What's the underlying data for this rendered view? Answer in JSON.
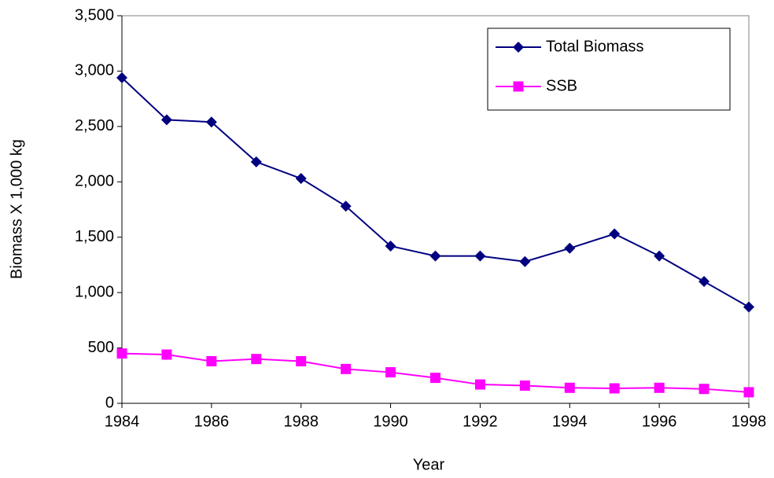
{
  "chart_data": {
    "type": "line",
    "x_label": "Year",
    "y_label": "Biomass X 1,000 kg",
    "x": [
      1984,
      1985,
      1986,
      1987,
      1988,
      1989,
      1990,
      1991,
      1992,
      1993,
      1994,
      1995,
      1996,
      1997,
      1998
    ],
    "series": [
      {
        "name": "Total Biomass",
        "color": "#000080",
        "marker": "diamond",
        "values": [
          2940,
          2560,
          2540,
          2180,
          2030,
          1780,
          1420,
          1330,
          1330,
          1280,
          1400,
          1530,
          1330,
          1100,
          870
        ]
      },
      {
        "name": "SSB",
        "color": "#ff00ff",
        "marker": "square",
        "values": [
          450,
          440,
          380,
          400,
          380,
          310,
          280,
          230,
          170,
          160,
          140,
          135,
          140,
          130,
          100
        ]
      }
    ],
    "xlim": [
      1984,
      1998
    ],
    "xticks": [
      1984,
      1986,
      1988,
      1990,
      1992,
      1994,
      1996,
      1998
    ],
    "ylim": [
      0,
      3500
    ],
    "yticks": [
      0,
      500,
      {
        "value": 1000,
        "label": "1,000"
      },
      {
        "value": 1500,
        "label": "1,500"
      },
      {
        "value": 2000,
        "label": "2,000"
      },
      {
        "value": 2500,
        "label": "2,500"
      },
      {
        "value": 3000,
        "label": "3,000"
      },
      {
        "value": 3500,
        "label": "3,500"
      }
    ],
    "grid": false,
    "legend": "upper right"
  }
}
